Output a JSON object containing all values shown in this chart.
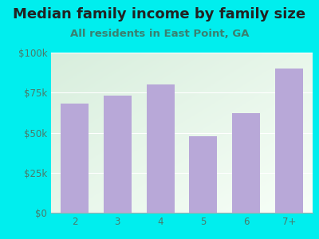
{
  "title": "Median family income by family size",
  "subtitle": "All residents in East Point, GA",
  "categories": [
    "2",
    "3",
    "4",
    "5",
    "6",
    "7+"
  ],
  "values": [
    68000,
    73000,
    80000,
    48000,
    62000,
    90000
  ],
  "bar_color": "#b8a8d8",
  "background_color": "#00EEEE",
  "plot_bg_color_tl": "#d8eedd",
  "plot_bg_color_br": "#f8fff8",
  "title_color": "#222222",
  "subtitle_color": "#3a8070",
  "tick_color": "#4a7a6a",
  "ylim": [
    0,
    100000
  ],
  "yticks": [
    0,
    25000,
    50000,
    75000,
    100000
  ],
  "ytick_labels": [
    "$0",
    "$25k",
    "$50k",
    "$75k",
    "$100k"
  ],
  "title_fontsize": 13,
  "subtitle_fontsize": 9.5,
  "tick_fontsize": 8.5
}
